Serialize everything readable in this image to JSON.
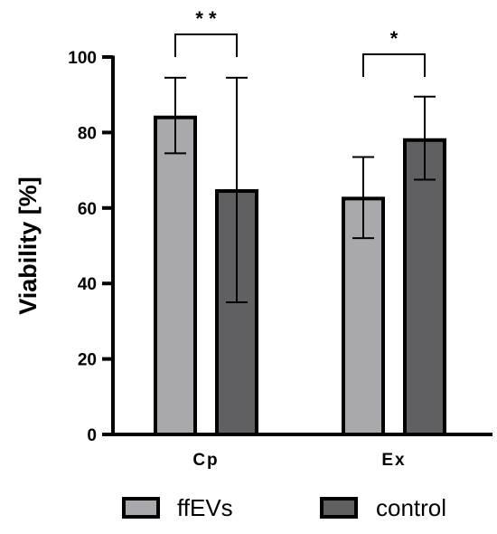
{
  "chart_data": {
    "type": "bar",
    "title": "",
    "xlabel": "",
    "ylabel": "Viability [%]",
    "ylim": [
      0,
      100
    ],
    "yticks": [
      "0",
      "20",
      "40",
      "60",
      "80",
      "100"
    ],
    "categories": [
      "Cp",
      "Ex"
    ],
    "series": [
      {
        "name": "ffEVs",
        "values": [
          84,
          62.5
        ],
        "error_low": [
          74.5,
          52
        ],
        "error_high": [
          94.5,
          73.5
        ],
        "color": "#a9a9ad"
      },
      {
        "name": "control",
        "values": [
          64.5,
          78
        ],
        "error_low": [
          35,
          67.5
        ],
        "error_high": [
          94.5,
          89.5
        ],
        "color": "#606062"
      }
    ],
    "significance": [
      {
        "category": "Cp",
        "label": "* *"
      },
      {
        "category": "Ex",
        "label": "*"
      }
    ],
    "legend_position": "bottom",
    "grid": false
  }
}
